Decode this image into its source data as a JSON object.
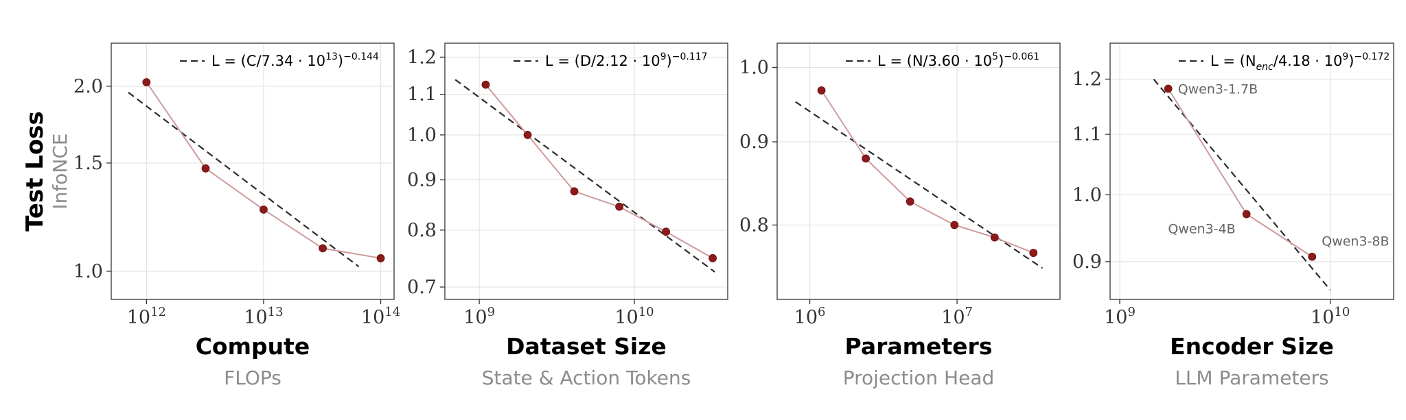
{
  "figure": {
    "ylabel": "Test Loss",
    "ysublabel": "InfoNCE"
  },
  "chart_data": [
    {
      "type": "line",
      "xlabel": "Compute",
      "xsublabel": "FLOPs",
      "xscale": "log",
      "yscale": "log",
      "xlim": [
        500000000000.0,
        130000000000000.0
      ],
      "ylim": [
        0.9,
        2.35
      ],
      "xticks": [
        {
          "value": 1000000000000.0,
          "base": "10",
          "exp": "12"
        },
        {
          "value": 10000000000000.0,
          "base": "10",
          "exp": "13"
        },
        {
          "value": 100000000000000.0,
          "base": "10",
          "exp": "14"
        }
      ],
      "yticks": [
        {
          "value": 1.0,
          "label": "1.0"
        },
        {
          "value": 1.5,
          "label": "1.5"
        },
        {
          "value": 2.0,
          "label": "2.0"
        }
      ],
      "series": [
        {
          "x": [
            1000000000000.0,
            3200000000000.0,
            10000000000000.0,
            32000000000000.0,
            100000000000000.0
          ],
          "y": [
            2.03,
            1.47,
            1.26,
            1.09,
            1.05
          ],
          "marker": "circle",
          "color": "#8b1a1a",
          "line_color": "#cf9a9b"
        }
      ],
      "fit": {
        "legend": {
          "pre": "L = (C/7.34 · 10",
          "exp1": "13",
          "mid": ")",
          "exp2": "−0.144"
        },
        "x0": 700000000000.0,
        "x1": 65000000000000.0,
        "scale": 73400000000000.0,
        "exponent": -0.144,
        "style": "dashed",
        "color": "#2b2b2b"
      },
      "legend_position": "top-right",
      "point_labels": [],
      "grid": true
    },
    {
      "type": "line",
      "xlabel": "Dataset Size",
      "xsublabel": "State & Action Tokens",
      "xscale": "log",
      "yscale": "log",
      "xlim": [
        600000000.0,
        40000000000.0
      ],
      "ylim": [
        0.68,
        1.24
      ],
      "xticks": [
        {
          "value": 1000000000.0,
          "base": "10",
          "exp": "9"
        },
        {
          "value": 10000000000.0,
          "base": "10",
          "exp": "10"
        }
      ],
      "yticks": [
        {
          "value": 0.7,
          "label": "0.7"
        },
        {
          "value": 0.8,
          "label": "0.8"
        },
        {
          "value": 0.9,
          "label": "0.9"
        },
        {
          "value": 1.0,
          "label": "1.0"
        },
        {
          "value": 1.1,
          "label": "1.1"
        },
        {
          "value": 1.2,
          "label": "1.2"
        }
      ],
      "series": [
        {
          "x": [
            1100000000.0,
            2050000000.0,
            4100000000.0,
            8000000000.0,
            16000000000.0,
            32000000000.0
          ],
          "y": [
            1.125,
            1.0,
            0.876,
            0.845,
            0.797,
            0.749
          ],
          "marker": "circle",
          "color": "#8b1a1a",
          "line_color": "#cf9a9b"
        }
      ],
      "fit": {
        "legend": {
          "pre": "L = (D/2.12 · 10",
          "exp1": "9",
          "mid": ")",
          "exp2": "−0.117"
        },
        "x0": 700000000.0,
        "x1": 33000000000.0,
        "scale": 2120000000.0,
        "exponent": -0.117,
        "style": "dashed",
        "color": "#2b2b2b"
      },
      "legend_position": "top-right",
      "point_labels": [],
      "grid": true
    },
    {
      "type": "line",
      "xlabel": "Parameters",
      "xsublabel": "Projection Head",
      "xscale": "log",
      "yscale": "log",
      "xlim": [
        600000.0,
        50000000.0
      ],
      "ylim": [
        0.72,
        1.035
      ],
      "xticks": [
        {
          "value": 1000000.0,
          "base": "10",
          "exp": "6"
        },
        {
          "value": 10000000.0,
          "base": "10",
          "exp": "7"
        }
      ],
      "yticks": [
        {
          "value": 0.8,
          "label": "0.8"
        },
        {
          "value": 0.9,
          "label": "0.9"
        },
        {
          "value": 1.0,
          "label": "1.0"
        }
      ],
      "series": [
        {
          "x": [
            1200000.0,
            2400000.0,
            4800000.0,
            9600000.0,
            18000000.0,
            33000000.0
          ],
          "y": [
            0.968,
            0.879,
            0.827,
            0.8,
            0.786,
            0.769
          ],
          "marker": "circle",
          "color": "#8b1a1a",
          "line_color": "#cf9a9b"
        }
      ],
      "fit": {
        "legend": {
          "pre": "L = (N/3.60 · 10",
          "exp1": "5",
          "mid": ")",
          "exp2": "−0.061"
        },
        "x0": 800000.0,
        "x1": 38000000.0,
        "scale": 360000.0,
        "exponent": -0.061,
        "style": "dashed",
        "color": "#2b2b2b"
      },
      "legend_position": "top-right",
      "point_labels": [],
      "grid": true
    },
    {
      "type": "line",
      "xlabel": "Encoder Size",
      "xsublabel": "LLM Parameters",
      "xscale": "log",
      "yscale": "log",
      "xlim": [
        900000000.0,
        20000000000.0
      ],
      "ylim": [
        0.848,
        1.27
      ],
      "xticks": [
        {
          "value": 1000000000.0,
          "base": "10",
          "exp": "9"
        },
        {
          "value": 10000000000.0,
          "base": "10",
          "exp": "10"
        }
      ],
      "yticks": [
        {
          "value": 0.9,
          "label": "0.9"
        },
        {
          "value": 1.0,
          "label": "1.0"
        },
        {
          "value": 1.1,
          "label": "1.1"
        },
        {
          "value": 1.2,
          "label": "1.2"
        }
      ],
      "series": [
        {
          "x": [
            1700000000.0,
            4000000000.0,
            8200000000.0
          ],
          "y": [
            1.182,
            0.97,
            0.907
          ],
          "marker": "circle",
          "color": "#8b1a1a",
          "line_color": "#cf9a9b"
        }
      ],
      "fit": {
        "legend": {
          "pre": "L = (N",
          "sub": "enc",
          "pre2": "/4.18 · 10",
          "exp1": "9",
          "mid": ")",
          "exp2": "−0.172"
        },
        "x0": 1450000000.0,
        "x1": 10000000000.0,
        "scale": 4180000000.0,
        "exponent": -0.172,
        "style": "dashed",
        "color": "#2b2b2b"
      },
      "legend_position": "top-right",
      "point_labels": [
        {
          "text": "Qwen3-1.7B",
          "x": 1700000000.0,
          "y": 1.182,
          "anchor": "right"
        },
        {
          "text": "Qwen3-4B",
          "x": 4000000000.0,
          "y": 0.97,
          "anchor": "below-left"
        },
        {
          "text": "Qwen3-8B",
          "x": 8200000000.0,
          "y": 0.907,
          "anchor": "above-right"
        }
      ],
      "grid": true
    }
  ]
}
